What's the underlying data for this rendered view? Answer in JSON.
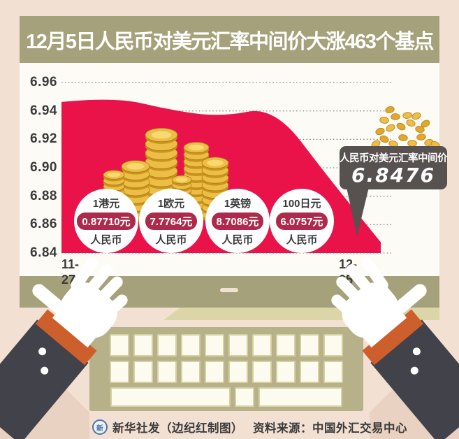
{
  "title": "12月5日人民币对美元汇率中间价大涨463个基点",
  "chart_data": {
    "type": "area",
    "x_visible_labels": [
      "11-27",
      "12-05"
    ],
    "num_points": 7,
    "values": [
      6.9463,
      6.9499,
      6.9409,
      6.9357,
      6.9431,
      6.8939,
      6.8476
    ],
    "y_ticks": [
      "6.96",
      "6.94",
      "6.92",
      "6.90",
      "6.88",
      "6.86",
      "6.84"
    ],
    "ylim": [
      6.84,
      6.96
    ],
    "grid": "dotted horizontal",
    "legend": "none",
    "area_color": "#e9134a",
    "last_point_label": "6.8476"
  },
  "callout": {
    "label": "人民币对美元汇率中间价",
    "value": "6.8476"
  },
  "conversion_badges": [
    {
      "unit": "1港元",
      "value": "0.87710元",
      "suffix": "人民币"
    },
    {
      "unit": "1欧元",
      "value": "7.7764元",
      "suffix": "人民币"
    },
    {
      "unit": "1英镑",
      "value": "8.7086元",
      "suffix": "人民币"
    },
    {
      "unit": "100日元",
      "value": "6.0757元",
      "suffix": "人民币"
    }
  ],
  "footer": {
    "credit": "新华社发（边纪红制图）",
    "source": "资料来源：中国外汇交易中心"
  },
  "colors": {
    "background": "#f2e0d3",
    "monitor_bezel": "#a5a17a",
    "screen": "#fcfbf6",
    "area_red": "#e9134a",
    "value_pill_red": "#ae2a4b",
    "callout_gray": "#575150",
    "coin_gold": "#edbe45",
    "keyboard_khaki": "#b6b189",
    "cuff_orange": "#cd5f2c",
    "sleeve_charcoal": "#41424a",
    "logo_blue": "#4f74a8"
  }
}
